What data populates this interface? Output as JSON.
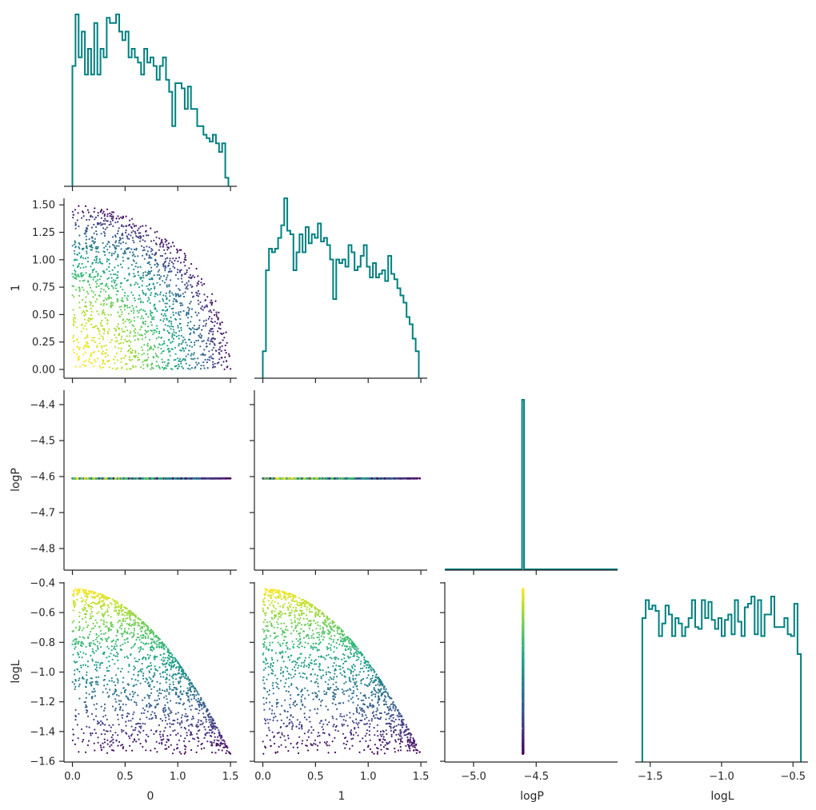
{
  "chart_data": {
    "type": "corner",
    "variables": [
      "0",
      "1",
      "logP",
      "logL"
    ],
    "ranges": {
      "0": [
        -0.08,
        1.56
      ],
      "1": [
        -0.08,
        1.56
      ],
      "logP": [
        -5.23,
        -3.85
      ],
      "logL": [
        -1.605,
        -0.395
      ]
    },
    "ticks": {
      "0": [
        "0.0",
        "0.5",
        "1.0",
        "1.5"
      ],
      "1": [
        "0.0",
        "0.5",
        "1.0",
        "1.5"
      ],
      "1_left": [
        "0.00",
        "0.25",
        "0.50",
        "0.75",
        "1.00",
        "1.25",
        "1.50"
      ],
      "logP": [
        "−5.0",
        "−4.5"
      ],
      "logP_left": [
        "−4.4",
        "−4.5",
        "−4.6",
        "−4.7",
        "−4.8"
      ],
      "logL": [
        "−1.5",
        "−1.0",
        "−0.5"
      ],
      "logL_left": [
        "−0.4",
        "−0.6",
        "−0.8",
        "−1.0",
        "−1.2",
        "−1.4",
        "−1.6"
      ]
    },
    "logP_value": -4.605,
    "logP_limits_y": [
      -4.86,
      -4.36
    ],
    "hist_0": [
      0.7,
      1.0,
      0.75,
      0.9,
      0.65,
      0.8,
      0.65,
      0.95,
      0.65,
      0.8,
      0.75,
      0.98,
      0.95,
      0.95,
      1.0,
      0.9,
      0.85,
      0.9,
      0.75,
      0.8,
      0.75,
      0.72,
      0.65,
      0.8,
      0.72,
      0.75,
      0.7,
      0.62,
      0.7,
      0.75,
      0.62,
      0.55,
      0.35,
      0.6,
      0.6,
      0.57,
      0.45,
      0.58,
      0.45,
      0.45,
      0.35,
      0.35,
      0.3,
      0.28,
      0.26,
      0.3,
      0.25,
      0.2,
      0.25,
      0.05
    ],
    "hist_1": [
      0.15,
      0.6,
      0.72,
      0.7,
      0.72,
      0.78,
      0.85,
      1.0,
      0.82,
      0.8,
      0.6,
      0.7,
      0.8,
      0.7,
      0.84,
      0.75,
      0.8,
      0.78,
      0.86,
      0.76,
      0.78,
      0.74,
      0.66,
      0.44,
      0.66,
      0.64,
      0.66,
      0.62,
      0.74,
      0.7,
      0.6,
      0.62,
      0.68,
      0.74,
      0.62,
      0.56,
      0.64,
      0.56,
      0.58,
      0.6,
      0.54,
      0.68,
      0.58,
      0.55,
      0.5,
      0.46,
      0.42,
      0.34,
      0.3,
      0.22,
      0.15
    ],
    "hist_logL": [
      0.8,
      0.9,
      0.85,
      0.87,
      0.84,
      0.7,
      0.77,
      0.87,
      0.82,
      0.7,
      0.8,
      0.77,
      0.7,
      0.75,
      0.8,
      0.9,
      0.75,
      0.74,
      0.9,
      0.8,
      0.89,
      0.79,
      0.74,
      0.8,
      0.7,
      0.79,
      0.82,
      0.71,
      0.9,
      0.78,
      0.7,
      0.86,
      0.88,
      0.92,
      0.71,
      0.9,
      0.7,
      0.82,
      0.82,
      0.92,
      0.75,
      0.75,
      0.75,
      0.8,
      0.71,
      0.7,
      0.88,
      0.6
    ]
  }
}
